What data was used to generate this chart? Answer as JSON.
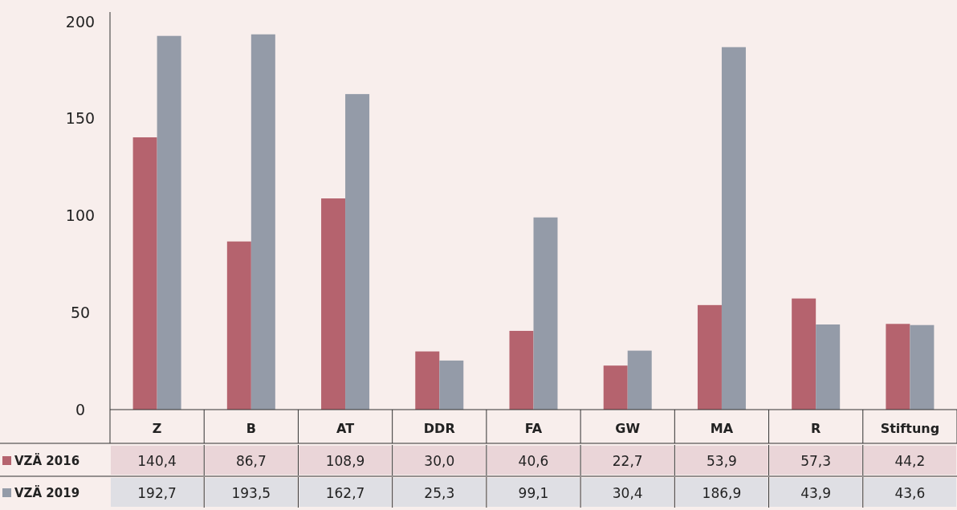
{
  "chart_data": {
    "type": "bar",
    "categories": [
      "Z",
      "B",
      "AT",
      "DDR",
      "FA",
      "GW",
      "MA",
      "R",
      "Stiftung"
    ],
    "series": [
      {
        "name": "VZÄ 2016",
        "color": "#b5636e",
        "values": [
          140.4,
          86.7,
          108.9,
          30.0,
          40.6,
          22.7,
          53.9,
          57.3,
          44.2
        ],
        "value_labels": [
          "140,4",
          "86,7",
          "108,9",
          "30,0",
          "40,6",
          "22,7",
          "53,9",
          "57,3",
          "44,2"
        ]
      },
      {
        "name": "VZÄ 2019",
        "color": "#949ba8",
        "values": [
          192.7,
          193.5,
          162.7,
          25.3,
          99.1,
          30.4,
          186.9,
          43.9,
          43.6
        ],
        "value_labels": [
          "192,7",
          "193,5",
          "162,7",
          "25,3",
          "99,1",
          "30,4",
          "186,9",
          "43,9",
          "43,6"
        ]
      }
    ],
    "ylim": [
      0,
      205
    ],
    "yticks": [
      0,
      50,
      100,
      150,
      200
    ],
    "grid": false,
    "legend": "bottom left"
  }
}
